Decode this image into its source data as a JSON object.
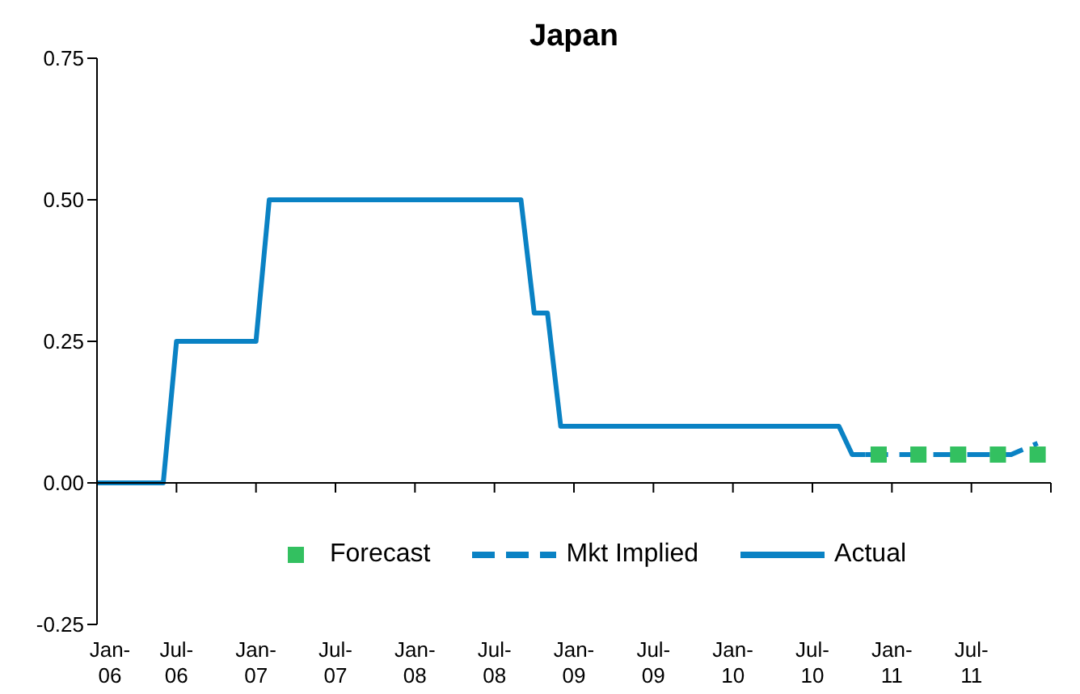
{
  "chart_data": {
    "type": "line",
    "title": "Japan",
    "legend": "bottom",
    "xlim": [
      "2006-01",
      "2012-01"
    ],
    "xticks": [
      {
        "value": "2006-01",
        "label": "Jan-06"
      },
      {
        "value": "2006-07",
        "label": "Jul-06"
      },
      {
        "value": "2007-01",
        "label": "Jan-07"
      },
      {
        "value": "2007-07",
        "label": "Jul-07"
      },
      {
        "value": "2008-01",
        "label": "Jan-08"
      },
      {
        "value": "2008-07",
        "label": "Jul-08"
      },
      {
        "value": "2009-01",
        "label": "Jan-09"
      },
      {
        "value": "2009-07",
        "label": "Jul-09"
      },
      {
        "value": "2010-01",
        "label": "Jan-10"
      },
      {
        "value": "2010-07",
        "label": "Jul-10"
      },
      {
        "value": "2011-01",
        "label": "Jan-11"
      },
      {
        "value": "2011-07",
        "label": "Jul-11"
      },
      {
        "value": "2012-01",
        "label": null
      }
    ],
    "ylim": [
      -0.25,
      0.75
    ],
    "yticks": [
      {
        "value": -0.25,
        "label": "-0.25"
      },
      {
        "value": 0,
        "label": "0.00"
      },
      {
        "value": 0.25,
        "label": "0.25"
      },
      {
        "value": 0.5,
        "label": "0.50"
      },
      {
        "value": 0.75,
        "label": "0.75"
      }
    ],
    "series": [
      {
        "name": "Forecast",
        "type": "scatter",
        "marker": "square",
        "color": "#33c060",
        "x": [
          "2010-12",
          "2011-03",
          "2011-06",
          "2011-09",
          "2011-12"
        ],
        "values": [
          0.05,
          0.05,
          0.05,
          0.05,
          0.05
        ]
      },
      {
        "name": "Mkt Implied",
        "line_style": "dashed",
        "color": "#0a82c4",
        "x": [
          "2010-11",
          "2011-10",
          "2011-11",
          "2011-12"
        ],
        "values": [
          0.05,
          0.05,
          0.06,
          0.07
        ]
      },
      {
        "name": "Actual",
        "line_style": "solid",
        "color": "#0a82c4",
        "x": [
          "2006-01",
          "2006-06",
          "2006-07",
          "2007-01",
          "2007-02",
          "2008-09",
          "2008-10",
          "2008-11",
          "2008-12",
          "2010-09",
          "2010-10",
          "2010-11"
        ],
        "values": [
          0,
          0,
          0.25,
          0.25,
          0.5,
          0.5,
          0.3,
          0.3,
          0.1,
          0.1,
          0.05,
          0.05
        ]
      }
    ]
  }
}
